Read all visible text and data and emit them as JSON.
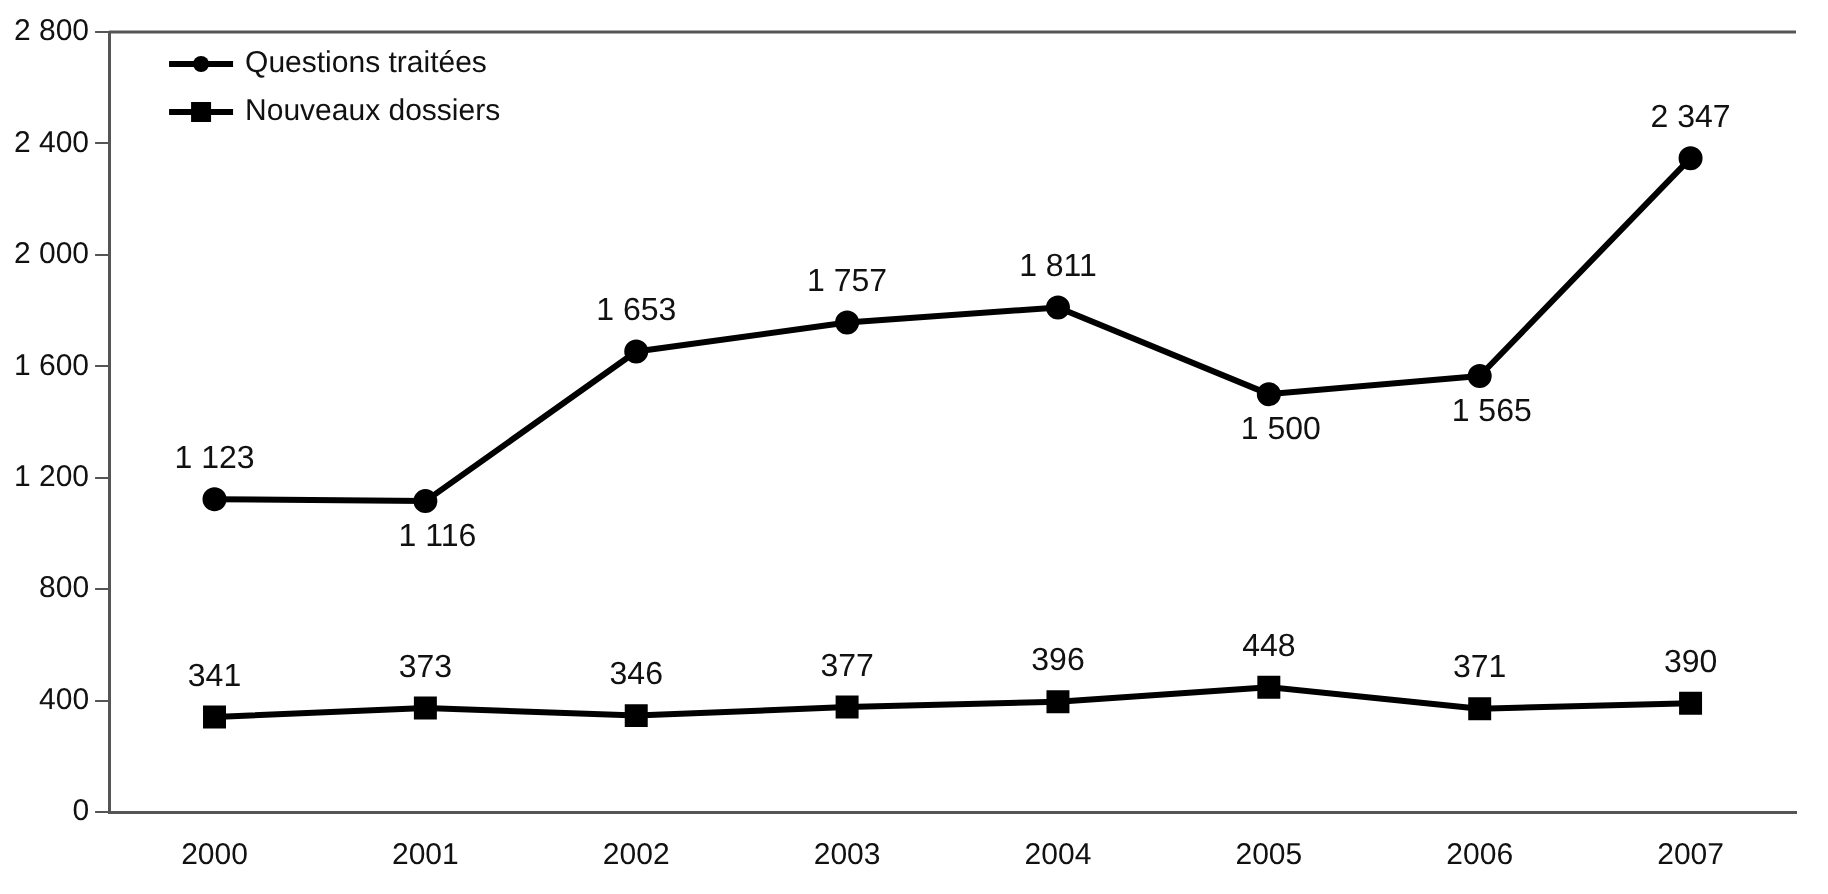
{
  "chart_data": {
    "type": "line",
    "categories": [
      "2000",
      "2001",
      "2002",
      "2003",
      "2004",
      "2005",
      "2006",
      "2007"
    ],
    "series": [
      {
        "name": "Questions traitées",
        "color": "#000000",
        "marker": "circle",
        "values": [
          1123,
          1116,
          1653,
          1757,
          1811,
          1500,
          1565,
          2347
        ],
        "value_labels": [
          "1 123",
          "1 116",
          "1 653",
          "1 757",
          "1 811",
          "1 500",
          "1 565",
          "2 347"
        ]
      },
      {
        "name": "Nouveaux dossiers",
        "color": "#000000",
        "marker": "square",
        "values": [
          341,
          373,
          346,
          377,
          396,
          448,
          371,
          390
        ],
        "value_labels": [
          "341",
          "373",
          "346",
          "377",
          "396",
          "448",
          "371",
          "390"
        ]
      }
    ],
    "ylim": [
      0,
      2800
    ],
    "yticks": [
      0,
      400,
      800,
      {
        "value": 1200,
        "label": "1 200"
      },
      {
        "value": 1600,
        "label": "1 600"
      },
      {
        "value": 2000,
        "label": "2 000"
      },
      {
        "value": 2400,
        "label": "2 400"
      },
      {
        "value": 2800,
        "label": "2 800"
      }
    ],
    "grid": false,
    "legend": "top left",
    "line_style": "solid"
  }
}
